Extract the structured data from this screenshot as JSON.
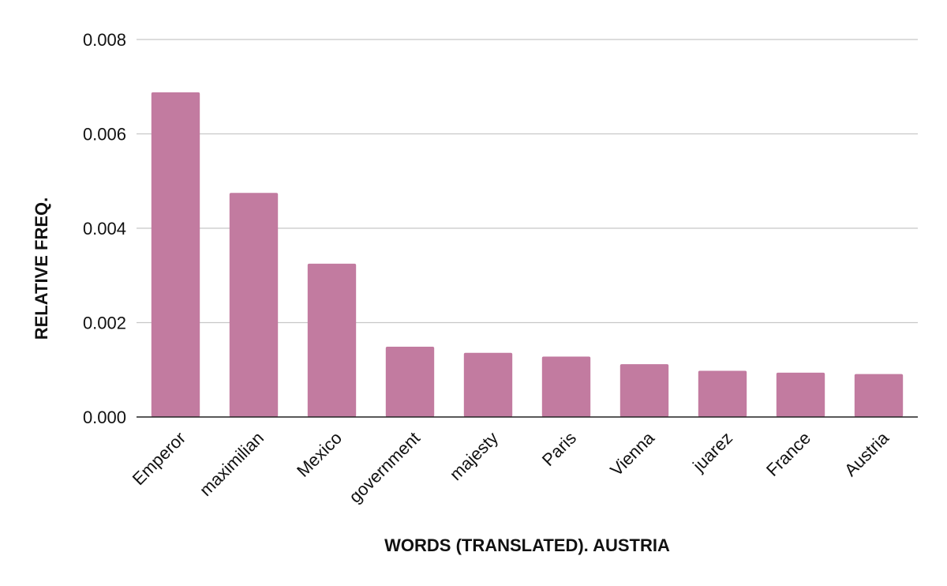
{
  "chart_data": {
    "type": "bar",
    "title": "",
    "xlabel": "WORDS (TRANSLATED). AUSTRIA",
    "ylabel": "RELATIVE FREQ.",
    "categories": [
      "Emperor",
      "maximilian",
      "Mexico",
      "government",
      "majesty",
      "Paris",
      "Vienna",
      "juarez",
      "France",
      "Austria"
    ],
    "series": [
      {
        "values": [
          0.00688,
          0.00475,
          0.00325,
          0.00149,
          0.00136,
          0.00128,
          0.00112,
          0.00098,
          0.00094,
          0.00091
        ]
      }
    ],
    "ylim": [
      0,
      0.008
    ],
    "yticks": [
      "0.000",
      "0.002",
      "0.004",
      "0.006",
      "0.008"
    ],
    "grid": true,
    "legend": "none",
    "bar_color": "#c27ba0"
  }
}
